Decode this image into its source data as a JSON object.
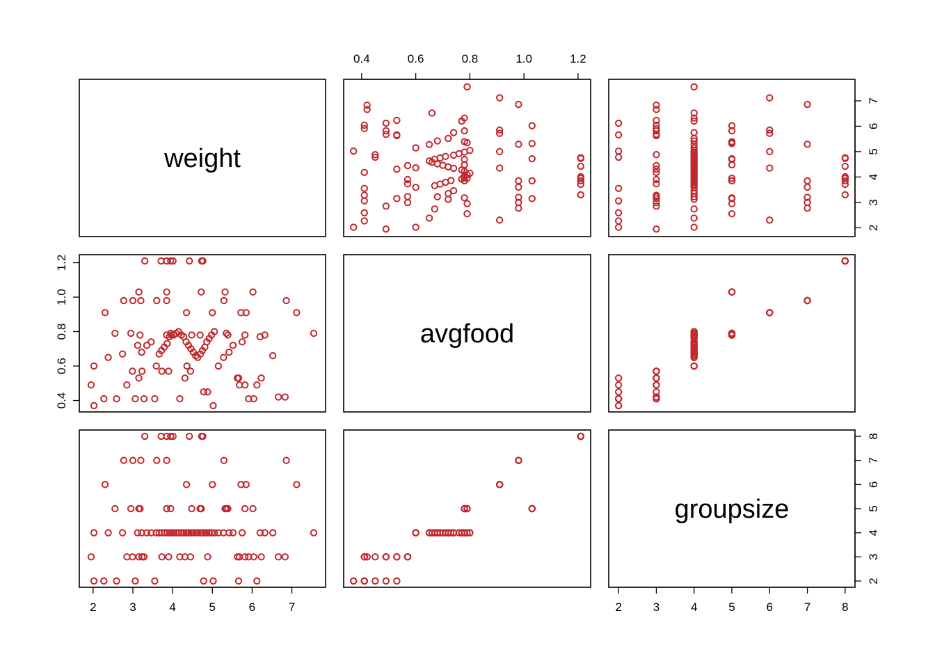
{
  "chart_data": {
    "type": "scatter",
    "subtype": "pairs-matrix",
    "point_color": "#C0282D",
    "point_shape": "open-circle",
    "variables": [
      {
        "key": "weight",
        "label": "weight",
        "lim": [
          1.9,
          7.6
        ],
        "ticks": [
          2,
          3,
          4,
          5,
          6,
          7
        ]
      },
      {
        "key": "avgfood",
        "label": "avgfood",
        "lim": [
          0.37,
          1.21
        ],
        "ticks": [
          0.4,
          0.6,
          0.8,
          1.0,
          1.2
        ],
        "tick_labels": [
          "0.4",
          "0.6",
          "0.8",
          "1.0",
          "1.2"
        ]
      },
      {
        "key": "groupsize",
        "label": "groupsize",
        "lim": [
          2,
          8
        ],
        "ticks": [
          2,
          3,
          4,
          5,
          6,
          7,
          8
        ]
      }
    ],
    "axes_layout": {
      "top": [
        null,
        1,
        null
      ],
      "bottom": [
        0,
        null,
        2
      ],
      "left": [
        null,
        1,
        null
      ],
      "right": [
        0,
        null,
        2
      ]
    },
    "points": [
      [
        2.02,
        0.37,
        2
      ],
      [
        2.27,
        0.41,
        2
      ],
      [
        2.59,
        0.41,
        2
      ],
      [
        3.06,
        0.41,
        2
      ],
      [
        3.55,
        0.41,
        2
      ],
      [
        5.02,
        0.37,
        2
      ],
      [
        5.66,
        0.53,
        2
      ],
      [
        6.12,
        0.49,
        2
      ],
      [
        4.78,
        0.45,
        2
      ],
      [
        1.95,
        0.49,
        3
      ],
      [
        2.85,
        0.49,
        3
      ],
      [
        3.23,
        0.57,
        3
      ],
      [
        3.73,
        0.57,
        3
      ],
      [
        4.31,
        0.53,
        3
      ],
      [
        4.45,
        0.57,
        3
      ],
      [
        4.88,
        0.45,
        3
      ],
      [
        5.63,
        0.53,
        3
      ],
      [
        5.82,
        0.49,
        3
      ],
      [
        5.91,
        0.41,
        3
      ],
      [
        6.04,
        0.41,
        3
      ],
      [
        6.23,
        0.53,
        3
      ],
      [
        6.66,
        0.42,
        3
      ],
      [
        6.83,
        0.42,
        3
      ],
      [
        4.18,
        0.41,
        3
      ],
      [
        3.28,
        0.41,
        3
      ],
      [
        2.99,
        0.57,
        3
      ],
      [
        3.9,
        0.57,
        3
      ],
      [
        3.15,
        0.53,
        3
      ],
      [
        5.68,
        0.49,
        3
      ],
      [
        2.02,
        0.6,
        4
      ],
      [
        2.38,
        0.65,
        4
      ],
      [
        2.74,
        0.67,
        4
      ],
      [
        3.22,
        0.68,
        4
      ],
      [
        3.35,
        0.72,
        4
      ],
      [
        3.46,
        0.74,
        4
      ],
      [
        3.59,
        0.6,
        4
      ],
      [
        3.66,
        0.67,
        4
      ],
      [
        3.72,
        0.69,
        4
      ],
      [
        3.79,
        0.71,
        4
      ],
      [
        3.86,
        0.73,
        4
      ],
      [
        3.92,
        0.77,
        4
      ],
      [
        3.97,
        0.78,
        4
      ],
      [
        4.03,
        0.78,
        4
      ],
      [
        4.09,
        0.79,
        4
      ],
      [
        4.15,
        0.8,
        4
      ],
      [
        4.22,
        0.78,
        4
      ],
      [
        4.28,
        0.77,
        4
      ],
      [
        4.34,
        0.74,
        4
      ],
      [
        4.4,
        0.72,
        4
      ],
      [
        4.46,
        0.7,
        4
      ],
      [
        4.52,
        0.68,
        4
      ],
      [
        4.58,
        0.66,
        4
      ],
      [
        4.63,
        0.65,
        4
      ],
      [
        4.7,
        0.67,
        4
      ],
      [
        4.75,
        0.69,
        4
      ],
      [
        4.81,
        0.71,
        4
      ],
      [
        4.86,
        0.74,
        4
      ],
      [
        4.92,
        0.76,
        4
      ],
      [
        4.98,
        0.78,
        4
      ],
      [
        5.05,
        0.8,
        4
      ],
      [
        5.15,
        0.6,
        4
      ],
      [
        5.28,
        0.65,
        4
      ],
      [
        5.42,
        0.68,
        4
      ],
      [
        5.52,
        0.72,
        4
      ],
      [
        5.75,
        0.74,
        4
      ],
      [
        6.2,
        0.77,
        4
      ],
      [
        6.32,
        0.78,
        4
      ],
      [
        6.52,
        0.66,
        4
      ],
      [
        7.55,
        0.79,
        4
      ],
      [
        3.12,
        0.72,
        4
      ],
      [
        4.36,
        0.6,
        4
      ],
      [
        2.55,
        0.79,
        5
      ],
      [
        2.95,
        0.79,
        5
      ],
      [
        3.18,
        0.78,
        5
      ],
      [
        3.85,
        0.78,
        5
      ],
      [
        3.95,
        0.79,
        5
      ],
      [
        4.48,
        0.78,
        5
      ],
      [
        4.69,
        0.78,
        5
      ],
      [
        5.35,
        0.79,
        5
      ],
      [
        5.39,
        0.78,
        5
      ],
      [
        5.82,
        0.78,
        5
      ],
      [
        6.02,
        1.03,
        5
      ],
      [
        5.32,
        1.03,
        5
      ],
      [
        4.72,
        1.03,
        5
      ],
      [
        3.85,
        1.03,
        5
      ],
      [
        3.15,
        1.03,
        5
      ],
      [
        2.3,
        0.91,
        6
      ],
      [
        4.35,
        0.91,
        6
      ],
      [
        5.0,
        0.91,
        6
      ],
      [
        5.72,
        0.91,
        6
      ],
      [
        5.85,
        0.91,
        6
      ],
      [
        7.12,
        0.91,
        6
      ],
      [
        2.77,
        0.98,
        7
      ],
      [
        3.0,
        0.98,
        7
      ],
      [
        3.2,
        0.98,
        7
      ],
      [
        3.6,
        0.98,
        7
      ],
      [
        3.85,
        0.98,
        7
      ],
      [
        5.29,
        0.98,
        7
      ],
      [
        6.86,
        0.98,
        7
      ],
      [
        3.3,
        1.21,
        8
      ],
      [
        3.71,
        1.21,
        8
      ],
      [
        3.85,
        1.21,
        8
      ],
      [
        3.95,
        1.21,
        8
      ],
      [
        4.42,
        1.21,
        8
      ],
      [
        4.73,
        1.21,
        8
      ],
      [
        4.76,
        1.21,
        8
      ],
      [
        4.01,
        1.21,
        8
      ]
    ]
  }
}
